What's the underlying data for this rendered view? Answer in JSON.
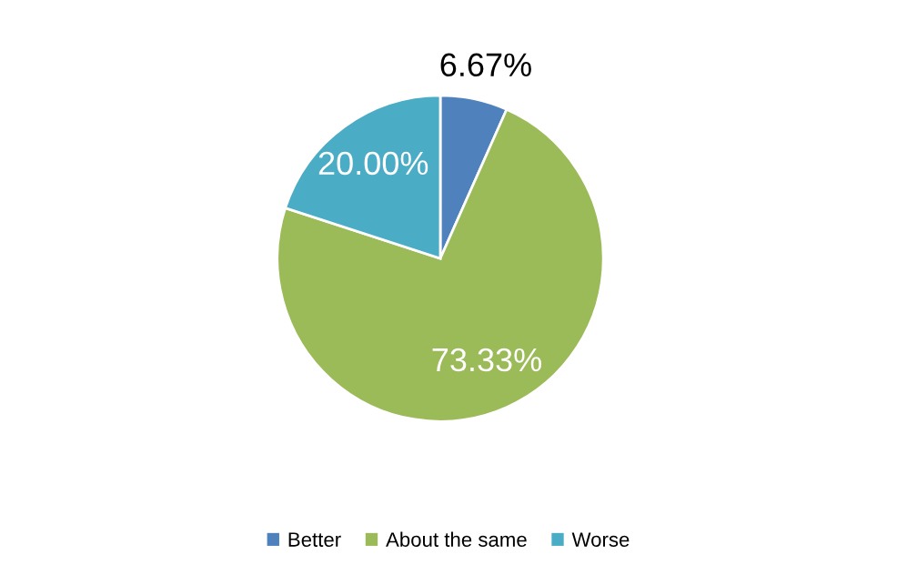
{
  "chart_data": {
    "type": "pie",
    "categories": [
      "Better",
      "About the same",
      "Worse"
    ],
    "values": [
      6.67,
      73.33,
      20.0
    ],
    "colors": [
      "#4f81bd",
      "#9bbb59",
      "#4bacc6"
    ],
    "value_labels": [
      "6.67%",
      "73.33%",
      "20.00%"
    ],
    "legend": "bottom"
  }
}
